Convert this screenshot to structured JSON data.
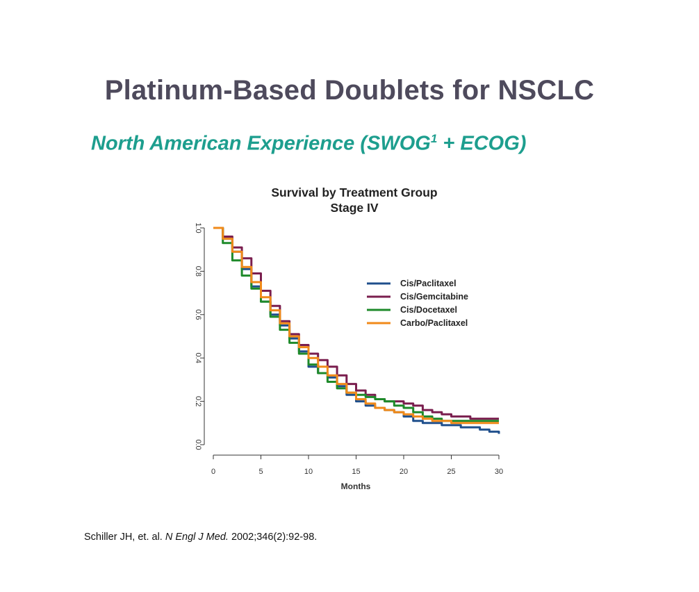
{
  "slide": {
    "title": "Platinum-Based Doublets for NSCLC",
    "subtitle_main": "North American Experience (SWOG",
    "subtitle_sup": "1",
    "subtitle_tail": " + ECOG)",
    "citation_authors": "Schiller JH, et. al. ",
    "citation_journal": "N Engl J Med.",
    "citation_rest": " 2002;346(2):92-98."
  },
  "chart_data": {
    "type": "line",
    "title": "Survival by Treatment Group",
    "subtitle": "Stage IV",
    "xlabel": "Months",
    "ylabel": "",
    "xlim": [
      0,
      30
    ],
    "ylim": [
      0,
      1.0
    ],
    "x_ticks": [
      "0",
      "5",
      "10",
      "15",
      "20",
      "25",
      "30"
    ],
    "y_ticks": [
      "0.0",
      "0.2",
      "0.4",
      "0.6",
      "0.8",
      "1.0"
    ],
    "grid": false,
    "legend_position": "upper-right",
    "series": [
      {
        "name": "Cis/Paclitaxel",
        "color": "#1f4f8c",
        "x": [
          0,
          1,
          2,
          3,
          4,
          5,
          6,
          7,
          8,
          9,
          10,
          11,
          12,
          13,
          14,
          15,
          16,
          17,
          18,
          19,
          20,
          21,
          22,
          23,
          24,
          25,
          26,
          27,
          28,
          29,
          30
        ],
        "y": [
          1.0,
          0.95,
          0.89,
          0.81,
          0.73,
          0.66,
          0.6,
          0.55,
          0.49,
          0.43,
          0.36,
          0.33,
          0.31,
          0.27,
          0.23,
          0.2,
          0.18,
          0.17,
          0.16,
          0.15,
          0.13,
          0.11,
          0.1,
          0.1,
          0.09,
          0.09,
          0.08,
          0.08,
          0.07,
          0.06,
          0.05
        ]
      },
      {
        "name": "Cis/Gemcitabine",
        "color": "#7a1e4e",
        "x": [
          0,
          1,
          2,
          3,
          4,
          5,
          6,
          7,
          8,
          9,
          10,
          11,
          12,
          13,
          14,
          15,
          16,
          17,
          18,
          19,
          20,
          21,
          22,
          23,
          24,
          25,
          26,
          27,
          28,
          29,
          30
        ],
        "y": [
          1.0,
          0.96,
          0.91,
          0.86,
          0.79,
          0.71,
          0.64,
          0.57,
          0.51,
          0.46,
          0.42,
          0.39,
          0.36,
          0.32,
          0.28,
          0.25,
          0.23,
          0.21,
          0.2,
          0.2,
          0.19,
          0.18,
          0.16,
          0.15,
          0.14,
          0.13,
          0.13,
          0.12,
          0.12,
          0.12,
          0.12
        ]
      },
      {
        "name": "Cis/Docetaxel",
        "color": "#1e8a2a",
        "x": [
          0,
          1,
          2,
          3,
          4,
          5,
          6,
          7,
          8,
          9,
          10,
          11,
          12,
          13,
          14,
          15,
          16,
          17,
          18,
          19,
          20,
          21,
          22,
          23,
          24,
          25,
          26,
          27,
          28,
          29,
          30
        ],
        "y": [
          1.0,
          0.93,
          0.85,
          0.78,
          0.72,
          0.66,
          0.59,
          0.53,
          0.47,
          0.42,
          0.37,
          0.33,
          0.29,
          0.26,
          0.24,
          0.23,
          0.22,
          0.21,
          0.2,
          0.18,
          0.17,
          0.15,
          0.13,
          0.12,
          0.11,
          0.11,
          0.11,
          0.11,
          0.11,
          0.11,
          0.11
        ]
      },
      {
        "name": "Carbo/Paclitaxel",
        "color": "#f08a1a",
        "x": [
          0,
          1,
          2,
          3,
          4,
          5,
          6,
          7,
          8,
          9,
          10,
          11,
          12,
          13,
          14,
          15,
          16,
          17,
          18,
          19,
          20,
          21,
          22,
          23,
          24,
          25,
          26,
          27,
          28,
          29,
          30
        ],
        "y": [
          1.0,
          0.95,
          0.89,
          0.82,
          0.75,
          0.68,
          0.62,
          0.56,
          0.5,
          0.45,
          0.4,
          0.36,
          0.32,
          0.28,
          0.24,
          0.21,
          0.19,
          0.17,
          0.16,
          0.15,
          0.14,
          0.13,
          0.12,
          0.11,
          0.11,
          0.1,
          0.1,
          0.1,
          0.1,
          0.1,
          0.1
        ]
      }
    ]
  }
}
